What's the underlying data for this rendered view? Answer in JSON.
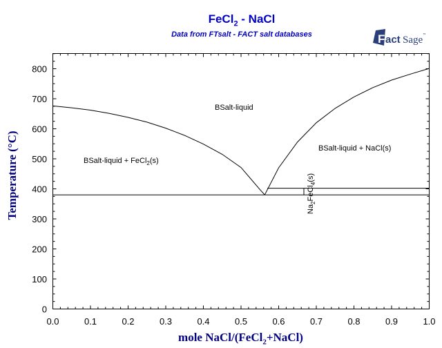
{
  "header": {
    "title_main": "FeCl",
    "title_sub": "2",
    "title_rest": " - NaCl",
    "subtitle": "Data from FTsalt - FACT salt databases",
    "logo_text": "FactSage",
    "logo_tm": "™"
  },
  "axes": {
    "ylabel": "Temperature (°C)",
    "xlabel_pre": "mole NaCl/(FeCl",
    "xlabel_sub": "2",
    "xlabel_post": "+NaCl)"
  },
  "colors": {
    "title": "#0000cc",
    "axis_label": "#000080",
    "lines": "#000000"
  },
  "chart_data": {
    "type": "line",
    "title": "FeCl2 - NaCl",
    "subtitle": "Data from FTsalt - FACT salt databases",
    "xlabel": "mole NaCl/(FeCl2+NaCl)",
    "ylabel": "Temperature (°C)",
    "xlim": [
      0.0,
      1.0
    ],
    "ylim": [
      0,
      850
    ],
    "x_ticks": [
      "0.0",
      "0.1",
      "0.2",
      "0.3",
      "0.4",
      "0.5",
      "0.6",
      "0.7",
      "0.8",
      "0.9",
      "1.0"
    ],
    "y_ticks": [
      "0",
      "100",
      "200",
      "300",
      "400",
      "500",
      "600",
      "700",
      "800"
    ],
    "grid": false,
    "series": [
      {
        "name": "FeCl2 liquidus",
        "x": [
          0.0,
          0.05,
          0.1,
          0.15,
          0.2,
          0.25,
          0.3,
          0.35,
          0.4,
          0.45,
          0.5,
          0.55,
          0.563
        ],
        "y": [
          676,
          670,
          662,
          651,
          638,
          622,
          602,
          578,
          549,
          515,
          471,
          398,
          380
        ]
      },
      {
        "name": "NaCl liquidus",
        "x": [
          0.563,
          0.6,
          0.65,
          0.7,
          0.75,
          0.8,
          0.85,
          0.9,
          0.95,
          1.0
        ],
        "y": [
          380,
          470,
          556,
          620,
          668,
          706,
          737,
          762,
          782,
          801
        ]
      },
      {
        "name": "Eutectic line",
        "x": [
          0.0,
          1.0
        ],
        "y": [
          380,
          380
        ]
      },
      {
        "name": "Na2FeCl4 peritectic line",
        "x": [
          0.57,
          1.0
        ],
        "y": [
          402,
          402
        ]
      },
      {
        "name": "Na2FeCl4 composition",
        "x": [
          0.667,
          0.667
        ],
        "y": [
          380,
          402
        ]
      }
    ],
    "annotations": [
      {
        "text": "BSalt-liquid",
        "x": 0.44,
        "y": 670
      },
      {
        "text": "BSalt-liquid + FeCl2(s)",
        "x": 0.08,
        "y": 495
      },
      {
        "text": "BSalt-liquid + NaCl(s)",
        "x": 0.71,
        "y": 535
      },
      {
        "text": "Na2FeCl4(s)",
        "x": 0.68,
        "y": 390,
        "rotation": -90
      }
    ]
  },
  "regions": {
    "liquid": "BSalt-liquid",
    "left_pre": "BSalt-liquid + FeCl",
    "left_sub": "2",
    "left_post": "(s)",
    "right": "BSalt-liquid + NaCl(s)",
    "compound_a": "Na",
    "compound_sub1": "2",
    "compound_b": "FeCl",
    "compound_sub2": "4",
    "compound_c": "(s)"
  }
}
